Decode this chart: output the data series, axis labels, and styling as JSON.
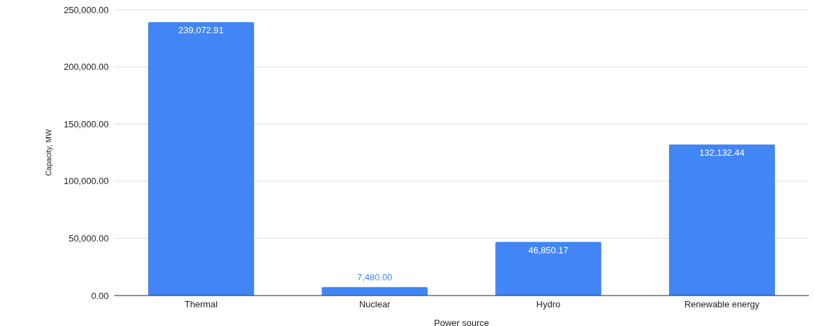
{
  "chart_data": {
    "type": "bar",
    "xlabel": "Power source",
    "ylabel": "Capacity, MW",
    "categories": [
      "Thermal",
      "Nuclear",
      "Hydro",
      "Renewable energy"
    ],
    "values": [
      239072.91,
      7480.0,
      46850.17,
      132132.44
    ],
    "value_labels": [
      "239,072.91",
      "7,480.00",
      "46,850.17",
      "132,132.44"
    ],
    "color": "#4285f4",
    "ylim": [
      0,
      250000
    ],
    "yticks": [
      {
        "value": 0,
        "label": "0.00"
      },
      {
        "value": 50000,
        "label": "50,000.00"
      },
      {
        "value": 100000,
        "label": "100,000.00"
      },
      {
        "value": 150000,
        "label": "150,000.00"
      },
      {
        "value": 200000,
        "label": "200,000.00"
      },
      {
        "value": 250000,
        "label": "250,000.00"
      }
    ],
    "grid": "y",
    "legend": false
  }
}
